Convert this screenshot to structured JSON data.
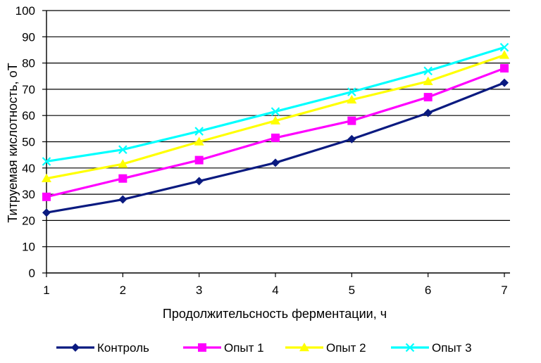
{
  "chart_data": {
    "type": "line",
    "title": "",
    "xlabel": "Продолжительсность  ферментации,  ч",
    "ylabel": "Титруемая кислотность, оТ",
    "x": [
      1,
      2,
      3,
      4,
      5,
      6,
      7
    ],
    "xlim": [
      1,
      7
    ],
    "ylim": [
      0,
      100
    ],
    "yticks": [
      0,
      10,
      20,
      30,
      40,
      50,
      60,
      70,
      80,
      90,
      100
    ],
    "grid": "horizontal",
    "legend_position": "bottom",
    "series": [
      {
        "name": "Контроль",
        "marker": "diamond",
        "color": "#0a1a80",
        "values": [
          23,
          28,
          35,
          42,
          51,
          61,
          72.5
        ]
      },
      {
        "name": "Опыт 1",
        "marker": "square",
        "color": "#ff00ff",
        "values": [
          29,
          36,
          43,
          51.5,
          58,
          67,
          78
        ]
      },
      {
        "name": "Опыт 2",
        "marker": "triangle",
        "color": "#ffff00",
        "values": [
          36,
          41.5,
          50,
          58,
          66,
          73,
          83
        ]
      },
      {
        "name": "Опыт 3",
        "marker": "x",
        "color": "#00ffff",
        "values": [
          42.5,
          47,
          54,
          61.5,
          69,
          77,
          86
        ]
      }
    ]
  }
}
